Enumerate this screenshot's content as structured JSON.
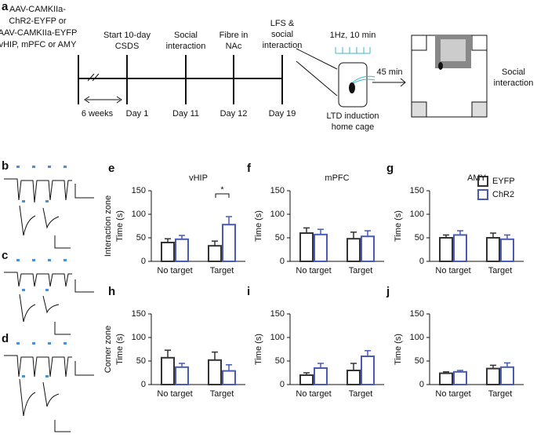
{
  "diagram": {
    "panels": [
      "a",
      "b",
      "c",
      "d"
    ],
    "aav_lines": [
      "AAV-CAMKIIa-",
      "ChR2-EYFP or",
      "AAV-CAMKIIa-EYFP",
      "vHIP, mPFC or AMY"
    ],
    "steps": [
      [
        "Start 10-day",
        "CSDS"
      ],
      [
        "Social",
        "interaction"
      ],
      [
        "Fibre in",
        "NAc"
      ],
      [
        "LFS &",
        "social",
        "interaction"
      ]
    ],
    "days": [
      "Day 1",
      "Day 11",
      "Day 12",
      "Day 19"
    ],
    "interval": "6 weeks",
    "stim": "1Hz, 10 min",
    "delay": "45 min",
    "cage": [
      "LTD induction",
      "home cage"
    ],
    "arena": [
      "Social",
      "interaction"
    ]
  },
  "chart_data": [
    {
      "type": "bar",
      "panel": "e",
      "title": "vHIP",
      "row_label": "Interaction zone",
      "ylabel": "Time (s)",
      "annotation": "*",
      "categories": [
        "No target",
        "Target"
      ],
      "series": [
        {
          "name": "EYFP",
          "color": "#333333",
          "values": [
            40,
            33
          ],
          "errors": [
            8,
            10
          ]
        },
        {
          "name": "ChR2",
          "color": "#4a5bb5",
          "values": [
            47,
            78
          ],
          "errors": [
            8,
            17
          ]
        }
      ],
      "ylim": [
        0,
        150
      ],
      "yticks": [
        0,
        50,
        100,
        150
      ]
    },
    {
      "type": "bar",
      "panel": "f",
      "title": "mPFC",
      "ylabel": "Time (s)",
      "categories": [
        "No target",
        "Target"
      ],
      "series": [
        {
          "name": "EYFP",
          "color": "#333333",
          "values": [
            60,
            48
          ],
          "errors": [
            11,
            14
          ]
        },
        {
          "name": "ChR2",
          "color": "#4a5bb5",
          "values": [
            57,
            53
          ],
          "errors": [
            11,
            12
          ]
        }
      ],
      "ylim": [
        0,
        150
      ],
      "yticks": [
        0,
        50,
        100,
        150
      ]
    },
    {
      "type": "bar",
      "panel": "g",
      "title": "AMY",
      "ylabel": "Time (s)",
      "legend": "upper right",
      "categories": [
        "No target",
        "Target"
      ],
      "series": [
        {
          "name": "EYFP",
          "color": "#333333",
          "values": [
            50,
            50
          ],
          "errors": [
            6,
            10
          ]
        },
        {
          "name": "ChR2",
          "color": "#4a5bb5",
          "values": [
            56,
            47
          ],
          "errors": [
            9,
            9
          ]
        }
      ],
      "ylim": [
        0,
        150
      ],
      "yticks": [
        0,
        50,
        100,
        150
      ]
    },
    {
      "type": "bar",
      "panel": "h",
      "row_label": "Corner zone",
      "ylabel": "Time (s)",
      "categories": [
        "No target",
        "Target"
      ],
      "series": [
        {
          "name": "EYFP",
          "color": "#333333",
          "values": [
            57,
            52
          ],
          "errors": [
            16,
            17
          ]
        },
        {
          "name": "ChR2",
          "color": "#4a5bb5",
          "values": [
            37,
            29
          ],
          "errors": [
            8,
            13
          ]
        }
      ],
      "ylim": [
        0,
        150
      ],
      "yticks": [
        0,
        50,
        100,
        150
      ]
    },
    {
      "type": "bar",
      "panel": "i",
      "ylabel": "Time (s)",
      "categories": [
        "No target",
        "Target"
      ],
      "series": [
        {
          "name": "EYFP",
          "color": "#333333",
          "values": [
            20,
            30
          ],
          "errors": [
            5,
            15
          ]
        },
        {
          "name": "ChR2",
          "color": "#4a5bb5",
          "values": [
            35,
            60
          ],
          "errors": [
            10,
            12
          ]
        }
      ],
      "ylim": [
        0,
        150
      ],
      "yticks": [
        0,
        50,
        100,
        150
      ]
    },
    {
      "type": "bar",
      "panel": "j",
      "ylabel": "Time (s)",
      "categories": [
        "No target",
        "Target"
      ],
      "series": [
        {
          "name": "EYFP",
          "color": "#333333",
          "values": [
            24,
            34
          ],
          "errors": [
            3,
            7
          ]
        },
        {
          "name": "ChR2",
          "color": "#4a5bb5",
          "values": [
            27,
            37
          ],
          "errors": [
            3,
            9
          ]
        }
      ],
      "ylim": [
        0,
        150
      ],
      "yticks": [
        0,
        50,
        100,
        150
      ]
    }
  ]
}
